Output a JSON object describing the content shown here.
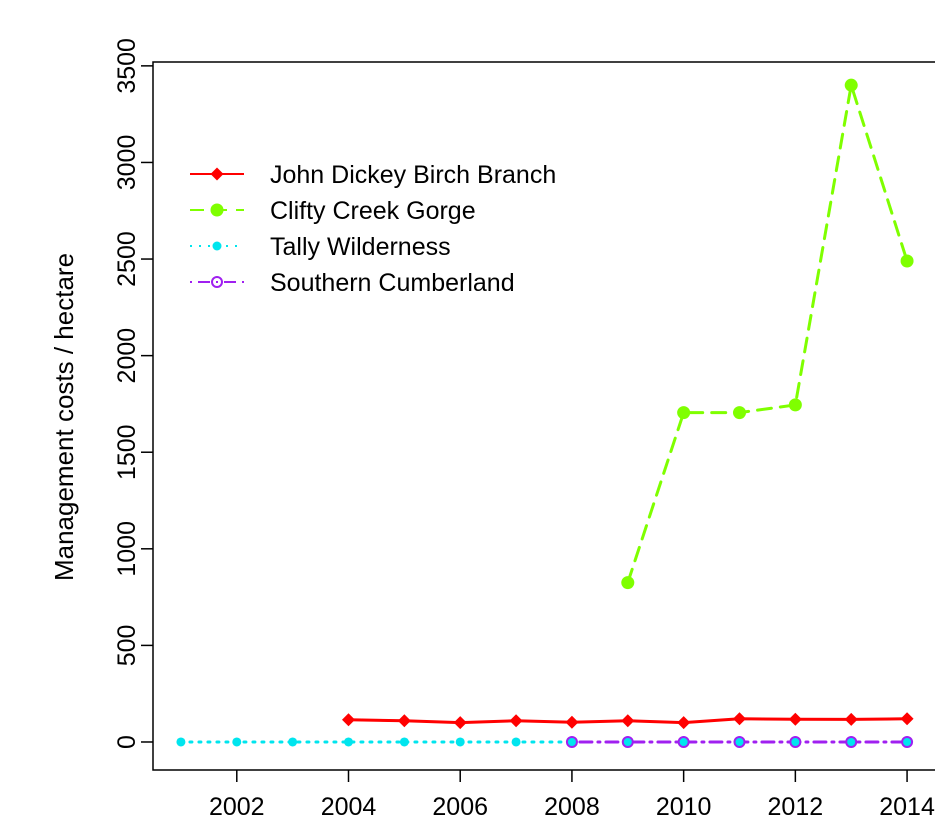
{
  "chart_data": {
    "type": "line",
    "title": "",
    "xlabel": "",
    "ylabel": "Management costs / hectare",
    "xlim": [
      2000.5,
      2014.5
    ],
    "ylim": [
      -145,
      3520
    ],
    "x_ticks": [
      "2002",
      "2004",
      "2006",
      "2008",
      "2010",
      "2012",
      "2014"
    ],
    "y_ticks": [
      "0",
      "500",
      "1000",
      "1500",
      "2000",
      "2500",
      "3000",
      "3500"
    ],
    "grid": false,
    "legend_position": "top-left",
    "series": [
      {
        "name": "John Dickey Birch Branch",
        "color": "#ff0000",
        "line": "solid",
        "marker": "diamond",
        "x": [
          2004,
          2005,
          2006,
          2007,
          2008,
          2009,
          2010,
          2011,
          2012,
          2013,
          2014
        ],
        "y": [
          115,
          110,
          100,
          110,
          102,
          110,
          100,
          120,
          118,
          117,
          120
        ]
      },
      {
        "name": "Clifty Creek Gorge",
        "color": "#7fff00",
        "line": "dashed",
        "marker": "circle",
        "x": [
          2009,
          2010,
          2011,
          2012,
          2013,
          2014
        ],
        "y": [
          825,
          1705,
          1705,
          1745,
          3400,
          2490
        ]
      },
      {
        "name": "Tally Wilderness",
        "color": "#00e5ee",
        "line": "dotted",
        "marker": "small-circle",
        "x": [
          2001,
          2002,
          2003,
          2004,
          2005,
          2006,
          2007,
          2008
        ],
        "y": [
          0,
          0,
          0,
          0,
          0,
          0,
          0,
          0
        ]
      },
      {
        "name": "Southern Cumberland",
        "color": "#a020f0",
        "line": "dotdash",
        "marker": "open-circle",
        "x": [
          2008,
          2009,
          2010,
          2011,
          2012,
          2013,
          2014
        ],
        "y": [
          0,
          0,
          0,
          0,
          0,
          0,
          0
        ]
      }
    ]
  }
}
